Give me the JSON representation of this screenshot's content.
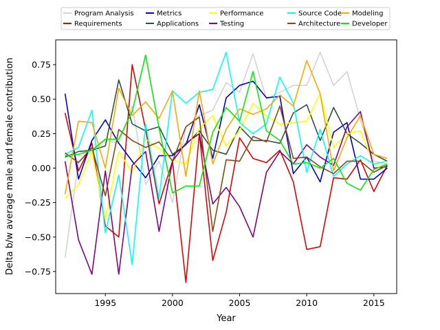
{
  "chart_data": {
    "type": "line",
    "title": "",
    "xlabel": "Year",
    "ylabel": "Delta b/w average male and female contribution",
    "xlim": [
      1991.3,
      2016.7
    ],
    "ylim": [
      -0.91,
      0.93
    ],
    "x_ticks": [
      1995,
      2000,
      2005,
      2010,
      2015
    ],
    "y_ticks": [
      -0.75,
      -0.5,
      -0.25,
      0.0,
      0.25,
      0.5,
      0.75
    ],
    "x_tick_labels": [
      "1995",
      "2000",
      "2005",
      "2010",
      "2015"
    ],
    "y_tick_labels": [
      "−0.75",
      "−0.50",
      "−0.25",
      "0.00",
      "0.25",
      "0.50",
      "0.75"
    ],
    "legend_position": "top (outside, above plot)",
    "legend_columns": 5,
    "x": [
      1992,
      1993,
      1994,
      1995,
      1996,
      1997,
      1998,
      1999,
      2000,
      2001,
      2002,
      2003,
      2004,
      2005,
      2006,
      2007,
      2008,
      2009,
      2010,
      2011,
      2012,
      2013,
      2014,
      2015,
      2016
    ],
    "series": [
      {
        "name": "Program Analysis",
        "color": "#d3d3d3",
        "values": [
          -0.65,
          0.05,
          0.12,
          0.2,
          0.18,
          0.45,
          -0.12,
          0.05,
          -0.25,
          0.3,
          0.38,
          0.42,
          0.62,
          0.55,
          0.83,
          0.5,
          0.55,
          0.6,
          0.6,
          0.84,
          0.6,
          0.7,
          0.35,
          0.05,
          0.03
        ]
      },
      {
        "name": "Requirements",
        "color": "#e00000",
        "values": [
          0.4,
          -0.02,
          0.18,
          -0.42,
          -0.5,
          0.75,
          0.28,
          -0.26,
          0.05,
          -0.83,
          0.25,
          -0.67,
          -0.32,
          0.22,
          0.07,
          0.04,
          0.13,
          -0.1,
          -0.59,
          -0.57,
          -0.07,
          -0.08,
          0.06,
          -0.17,
          0.02
        ]
      },
      {
        "name": "Metrics",
        "color": "#0000cc",
        "values": [
          0.54,
          -0.08,
          0.2,
          0.35,
          0.18,
          0.05,
          -0.07,
          0.09,
          0.09,
          0.17,
          0.46,
          0.07,
          0.51,
          0.6,
          0.63,
          0.51,
          0.52,
          -0.04,
          0.08,
          -0.1,
          0.26,
          0.33,
          -0.08,
          -0.08,
          0.0
        ]
      },
      {
        "name": "Applications",
        "color": "#2f4f3f",
        "values": [
          0.08,
          0.12,
          0.13,
          0.16,
          0.64,
          0.32,
          0.27,
          0.3,
          0.1,
          0.17,
          0.27,
          0.13,
          0.1,
          0.3,
          0.2,
          0.2,
          0.18,
          0.4,
          0.46,
          0.2,
          0.44,
          0.25,
          0.18,
          0.1,
          0.05
        ]
      },
      {
        "name": "Performance",
        "color": "#ffff00",
        "values": [
          -0.22,
          -0.12,
          0.12,
          -0.37,
          0.12,
          -0.03,
          0.21,
          0.14,
          0.06,
          0.03,
          0.29,
          0.38,
          0.16,
          0.27,
          0.47,
          0.38,
          0.32,
          0.33,
          0.34,
          0.54,
          0.15,
          0.25,
          0.27,
          0.03,
          0.02
        ]
      },
      {
        "name": "Testing",
        "color": "#800080",
        "values": [
          0.05,
          -0.52,
          -0.77,
          -0.02,
          -0.77,
          0.02,
          0.12,
          -0.46,
          0.05,
          0.18,
          0.25,
          -0.26,
          -0.14,
          -0.28,
          -0.5,
          -0.03,
          0.12,
          0.03,
          0.17,
          0.08,
          0.02,
          0.3,
          0.41,
          0.0,
          0.01
        ]
      },
      {
        "name": "Source Code",
        "color": "#00ffff",
        "values": [
          0.1,
          0.15,
          0.42,
          -0.47,
          -0.05,
          -0.7,
          0.32,
          -0.22,
          0.56,
          0.47,
          0.55,
          0.57,
          0.84,
          0.33,
          0.25,
          0.32,
          0.66,
          0.47,
          -0.03,
          0.28,
          -0.06,
          0.03,
          0.09,
          0.03,
          0.05
        ]
      },
      {
        "name": "Architecture",
        "color": "#8b4513",
        "values": [
          0.11,
          0.04,
          0.15,
          -0.2,
          0.28,
          0.2,
          0.15,
          0.19,
          0.05,
          0.3,
          0.37,
          -0.46,
          0.06,
          0.05,
          0.23,
          0.19,
          0.45,
          0.07,
          0.08,
          0.01,
          -0.04,
          0.05,
          0.05,
          -0.03,
          0.02
        ]
      },
      {
        "name": "Modeling",
        "color": "#ffa500",
        "values": [
          -0.19,
          0.34,
          0.33,
          0.0,
          0.58,
          0.38,
          0.48,
          0.36,
          0.56,
          -0.06,
          0.56,
          0.03,
          0.28,
          0.43,
          0.39,
          0.43,
          0.53,
          0.45,
          0.78,
          0.54,
          -0.02,
          0.22,
          0.38,
          0.1,
          0.07
        ]
      },
      {
        "name": "Developer",
        "color": "#00ee00",
        "values": [
          0.09,
          0.1,
          0.13,
          0.21,
          0.21,
          0.41,
          0.82,
          0.29,
          -0.18,
          -0.13,
          -0.13,
          0.26,
          0.44,
          0.34,
          0.7,
          0.27,
          0.2,
          0.03,
          0.04,
          0.0,
          0.07,
          -0.11,
          -0.16,
          -0.01,
          0.03
        ]
      }
    ]
  }
}
